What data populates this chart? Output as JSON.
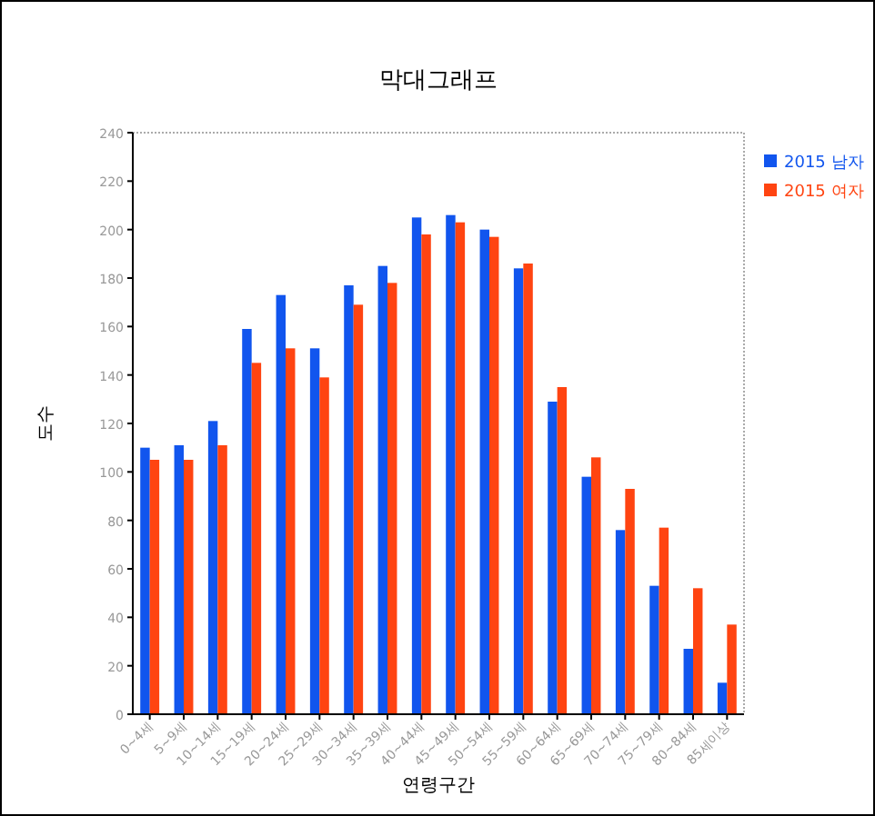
{
  "chart_data": {
    "type": "bar",
    "title": "막대그래프",
    "xlabel": "연령구간",
    "ylabel": "도수",
    "categories": [
      "0~4세",
      "5~9세",
      "10~14세",
      "15~19세",
      "20~24세",
      "25~29세",
      "30~34세",
      "35~39세",
      "40~44세",
      "45~49세",
      "50~54세",
      "55~59세",
      "60~64세",
      "65~69세",
      "70~74세",
      "75~79세",
      "80~84세",
      "85세이상"
    ],
    "series": [
      {
        "name": "2015 남자",
        "color": "#1155ee",
        "values": [
          110,
          111,
          121,
          159,
          173,
          151,
          177,
          185,
          205,
          206,
          200,
          184,
          129,
          98,
          76,
          53,
          27,
          13
        ]
      },
      {
        "name": "2015 여자",
        "color": "#ff4411",
        "values": [
          105,
          105,
          111,
          145,
          151,
          139,
          169,
          178,
          198,
          203,
          197,
          186,
          135,
          106,
          93,
          77,
          52,
          37
        ]
      }
    ],
    "ylim": [
      0,
      240
    ],
    "yticks": [
      0,
      20,
      40,
      60,
      80,
      100,
      120,
      140,
      160,
      180,
      200,
      220,
      240
    ],
    "grid": false,
    "legend": "top right"
  }
}
